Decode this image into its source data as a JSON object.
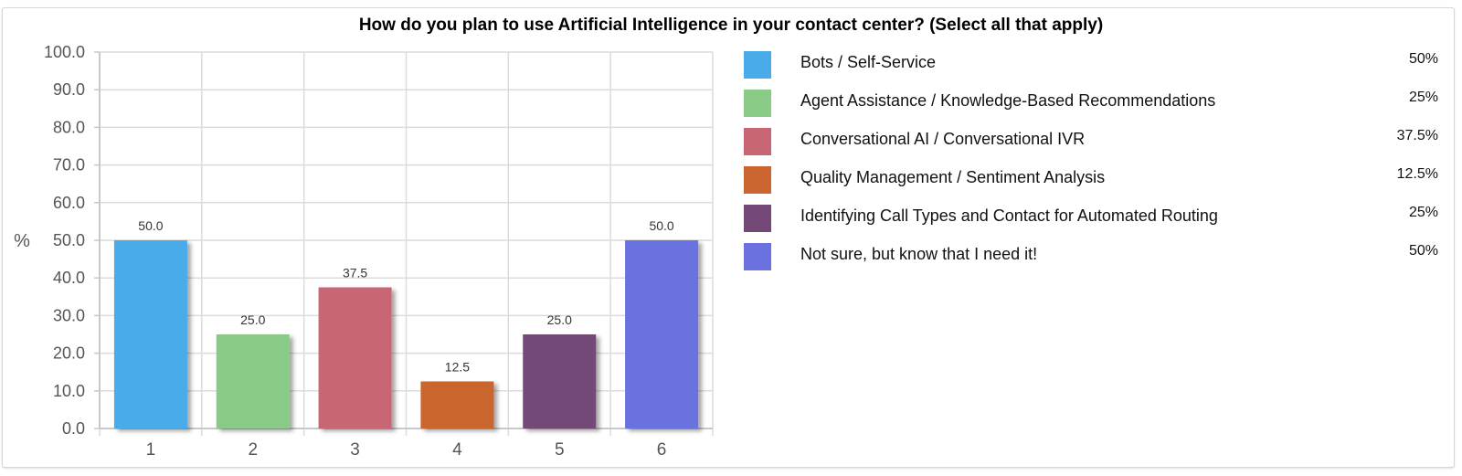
{
  "chart_data": {
    "type": "bar",
    "title": "How do you plan to use Artificial Intelligence in your contact center? (Select all that apply)",
    "ylabel": "%",
    "xlabel": "",
    "ylim": [
      0,
      100
    ],
    "yticks": [
      "0.0",
      "10.0",
      "20.0",
      "30.0",
      "40.0",
      "50.0",
      "60.0",
      "70.0",
      "80.0",
      "90.0",
      "100.0"
    ],
    "categories": [
      "1",
      "2",
      "3",
      "4",
      "5",
      "6"
    ],
    "values": [
      50,
      25,
      37.5,
      12.5,
      25,
      50
    ],
    "data_labels": [
      "50.0",
      "25.0",
      "37.5",
      "12.5",
      "25.0",
      "50.0"
    ],
    "colors": [
      "#4aabea",
      "#89ca86",
      "#c86673",
      "#cb652f",
      "#734877",
      "#6b72df"
    ],
    "grid": true,
    "legend_position": "right",
    "legend": [
      {
        "label": "Bots / Self-Service",
        "pct": "50%",
        "color": "#4aabea"
      },
      {
        "label": "Agent Assistance / Knowledge-Based Recommendations",
        "pct": "25%",
        "color": "#89ca86"
      },
      {
        "label": "Conversational AI / Conversational IVR",
        "pct": "37.5%",
        "color": "#c86673"
      },
      {
        "label": "Quality Management / Sentiment Analysis",
        "pct": "12.5%",
        "color": "#cb652f"
      },
      {
        "label": "Identifying Call Types and Contact for Automated Routing",
        "pct": "25%",
        "color": "#734877"
      },
      {
        "label": "Not sure, but know that I need it!",
        "pct": "50%",
        "color": "#6b72df"
      }
    ]
  }
}
